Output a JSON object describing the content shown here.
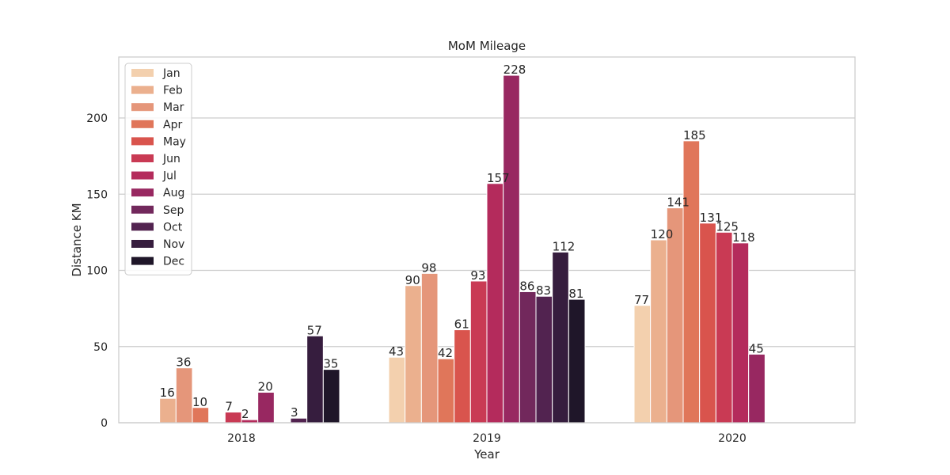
{
  "chart_data": {
    "type": "bar",
    "title": "MoM Mileage",
    "xlabel": "Year",
    "ylabel": "Distance KM",
    "categories": [
      "2018",
      "2019",
      "2020"
    ],
    "ylim": [
      0,
      240
    ],
    "yticks": [
      0,
      50,
      100,
      150,
      200
    ],
    "grid": "horizontal",
    "legend_position": "top-left",
    "series": [
      {
        "name": "Jan",
        "color": "#f3d0ae",
        "values": [
          null,
          43,
          77
        ]
      },
      {
        "name": "Feb",
        "color": "#ebb08e",
        "values": [
          16,
          90,
          120
        ]
      },
      {
        "name": "Mar",
        "color": "#e5967a",
        "values": [
          36,
          98,
          141
        ]
      },
      {
        "name": "Apr",
        "color": "#e0765a",
        "values": [
          10,
          42,
          185
        ]
      },
      {
        "name": "May",
        "color": "#d9544d",
        "values": [
          null,
          61,
          131
        ]
      },
      {
        "name": "Jun",
        "color": "#c93a54",
        "values": [
          7,
          93,
          125
        ]
      },
      {
        "name": "Jul",
        "color": "#b42b5c",
        "values": [
          2,
          157,
          118
        ]
      },
      {
        "name": "Aug",
        "color": "#982861",
        "values": [
          20,
          228,
          45
        ]
      },
      {
        "name": "Sep",
        "color": "#72285c",
        "values": [
          null,
          86,
          null
        ]
      },
      {
        "name": "Oct",
        "color": "#522350",
        "values": [
          3,
          83,
          null
        ]
      },
      {
        "name": "Nov",
        "color": "#361d3e",
        "values": [
          57,
          112,
          null
        ]
      },
      {
        "name": "Dec",
        "color": "#1f1629",
        "values": [
          35,
          81,
          null
        ]
      }
    ]
  }
}
